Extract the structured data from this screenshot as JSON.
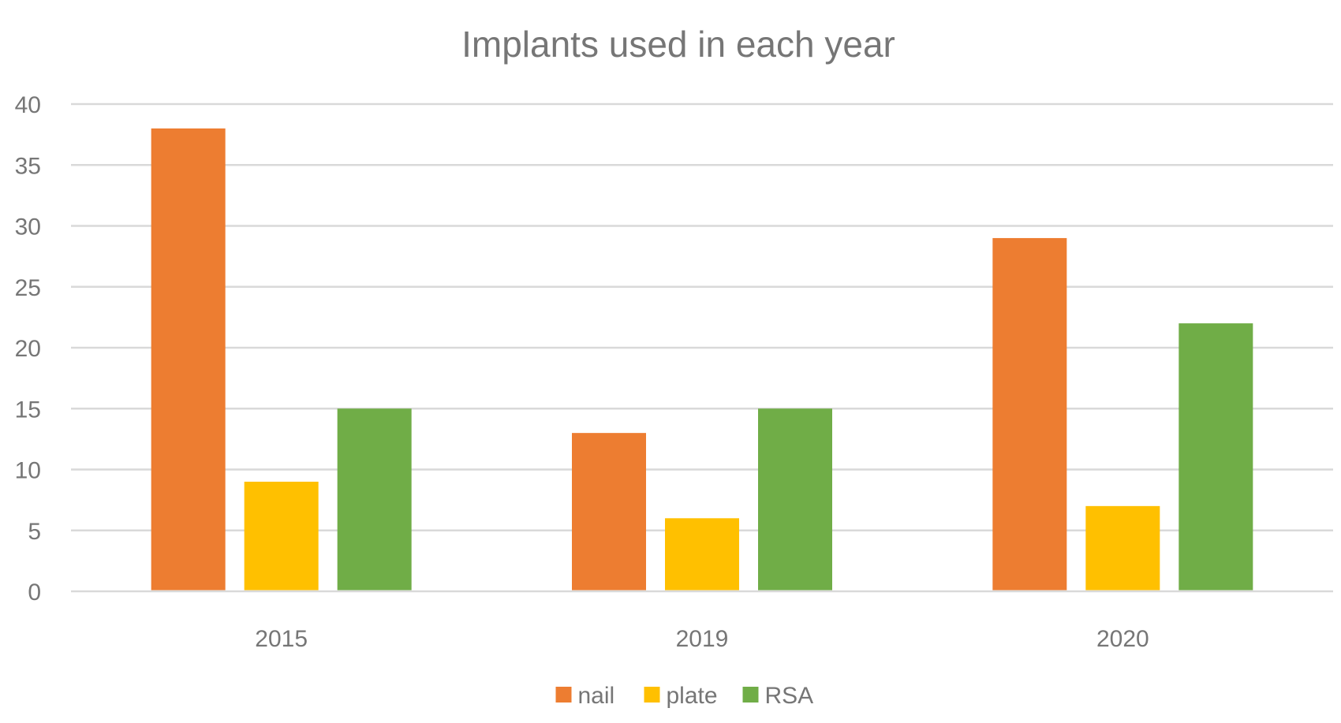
{
  "chart_data": {
    "type": "bar",
    "title": "Implants used in each year",
    "xlabel": "",
    "ylabel": "",
    "categories": [
      "2015",
      "2019",
      "2020"
    ],
    "series": [
      {
        "name": "nail",
        "color": "#ED7D31",
        "values": [
          38,
          13,
          29
        ]
      },
      {
        "name": "plate",
        "color": "#FFC000",
        "values": [
          9,
          6,
          7
        ]
      },
      {
        "name": "RSA",
        "color": "#70AD47",
        "values": [
          15,
          15,
          22
        ]
      }
    ],
    "ylim": [
      0,
      40
    ],
    "yticks": [
      "0",
      "5",
      "10",
      "15",
      "20",
      "25",
      "30",
      "35",
      "40"
    ],
    "grid": true,
    "legend_position": "bottom"
  }
}
